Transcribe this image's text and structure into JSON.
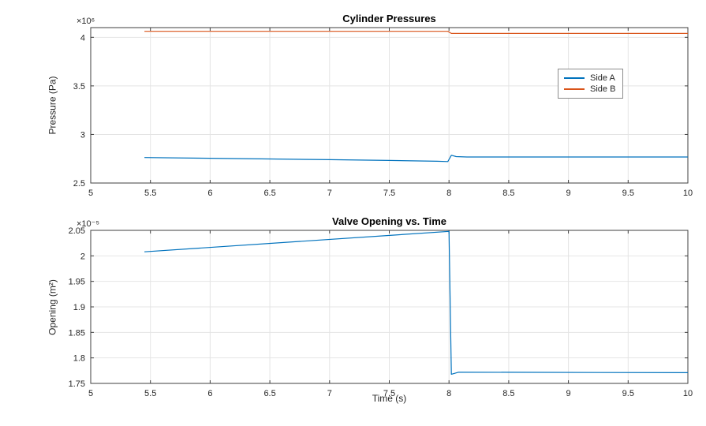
{
  "figure": {
    "background": "#ffffff",
    "axis_color": "#3f3f3f",
    "grid_color": "#e4e4e4",
    "text_color": "#262626"
  },
  "chart_data": [
    {
      "type": "line",
      "title": "Cylinder Pressures",
      "xlabel": "",
      "ylabel": "Pressure (Pa)",
      "scale_label": "×10⁶",
      "scale_factor": 1000000,
      "xlim": [
        5,
        10
      ],
      "ylim": [
        2.5,
        4.1
      ],
      "xticks": [
        "5",
        "5.5",
        "6",
        "6.5",
        "7",
        "7.5",
        "8",
        "8.5",
        "9",
        "9.5",
        "10"
      ],
      "yticks": [
        "2.5",
        "3",
        "3.5",
        "4"
      ],
      "grid": true,
      "legend": {
        "position": "right-inside",
        "entries": [
          "Side A",
          "Side B"
        ]
      },
      "series": [
        {
          "name": "Side A",
          "color": "#0072BD",
          "points": [
            [
              5.45,
              2.762
            ],
            [
              6.0,
              2.755
            ],
            [
              6.5,
              2.748
            ],
            [
              7.0,
              2.74
            ],
            [
              7.5,
              2.732
            ],
            [
              7.9,
              2.724
            ],
            [
              7.99,
              2.721
            ],
            [
              8.02,
              2.786
            ],
            [
              8.06,
              2.772
            ],
            [
              8.15,
              2.768
            ],
            [
              10,
              2.768
            ]
          ]
        },
        {
          "name": "Side B",
          "color": "#D95319",
          "points": [
            [
              5.45,
              4.062
            ],
            [
              7.99,
              4.062
            ],
            [
              8.02,
              4.04
            ],
            [
              10,
              4.04
            ]
          ]
        }
      ]
    },
    {
      "type": "line",
      "title": "Valve Opening vs. Time",
      "xlabel": "Time (s)",
      "ylabel": "Opening  (m²)",
      "scale_label": "×10⁻⁵",
      "scale_factor": 1e-05,
      "xlim": [
        5,
        10
      ],
      "ylim": [
        1.75,
        2.05
      ],
      "xticks": [
        "5",
        "5.5",
        "6",
        "6.5",
        "7",
        "7.5",
        "8",
        "8.5",
        "9",
        "9.5",
        "10"
      ],
      "yticks": [
        "1.75",
        "1.8",
        "1.85",
        "1.9",
        "1.95",
        "2",
        "2.05"
      ],
      "grid": true,
      "series": [
        {
          "name": "Opening",
          "color": "#0072BD",
          "points": [
            [
              5.45,
              2.008
            ],
            [
              8.0,
              2.048
            ],
            [
              8.02,
              1.768
            ],
            [
              8.08,
              1.772
            ],
            [
              10,
              1.771
            ]
          ]
        }
      ]
    }
  ]
}
